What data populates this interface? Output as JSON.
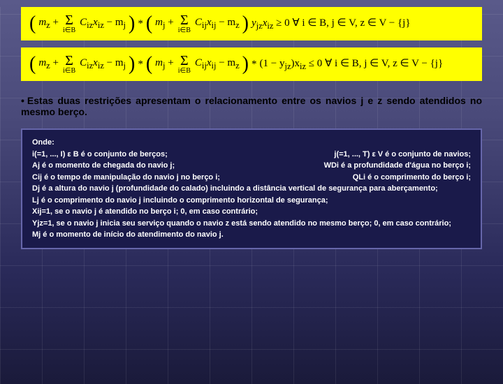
{
  "background": {
    "gradient_start": "#5a5a8a",
    "gradient_end": "#1a1a3a",
    "grid_color": "rgba(255,255,255,0.08)"
  },
  "formulas": {
    "box_bg": "#ffff00",
    "font_family": "Times New Roman",
    "formula1": {
      "part1_pre": "m",
      "part1_sub1": "z",
      "plus1": " + ",
      "sum1_top": "",
      "sum1_bot": "i∈B",
      "term1": "C",
      "term1_sub": "iz",
      "term1b": "x",
      "term1b_sub": "iz",
      "minus1": " − m",
      "minus1_sub": "j",
      "times1": " * ",
      "part2_pre": "m",
      "part2_sub1": "j",
      "plus2": " + ",
      "sum2_top": "",
      "sum2_bot": "i∈B",
      "term2": "C",
      "term2_sub": "ij",
      "term2b": "x",
      "term2b_sub": "ij",
      "minus2": " − m",
      "minus2_sub": "z",
      "tail": "y",
      "tail_sub1": "jz",
      "tail2": "x",
      "tail_sub2": "iz",
      "ineq": " ≥ 0  ∀ i ∈ B,  j ∈ V,  z ∈ V − {j}"
    },
    "formula2": {
      "part1_pre": "m",
      "part1_sub1": "z",
      "plus1": " + ",
      "sum1_bot": "i∈B",
      "term1": "C",
      "term1_sub": "iz",
      "term1b": "x",
      "term1b_sub": "iz",
      "minus1": " − m",
      "minus1_sub": "j",
      "times1": " * ",
      "part2_pre": "m",
      "part2_sub1": "j",
      "plus2": " + ",
      "sum2_bot": "i∈B",
      "term2": "C",
      "term2_sub": "ij",
      "term2b": "x",
      "term2b_sub": "ij",
      "minus2": " − m",
      "minus2_sub": "z",
      "times2": " * ",
      "part3": "(1 − y",
      "part3_sub": "jz",
      "part3b": ")x",
      "part3b_sub": "iz",
      "ineq": " ≤ 0  ∀ i ∈ B,  j ∈ V,  z ∈ V − {j}"
    }
  },
  "bullet": {
    "marker": "•",
    "text": "Estas duas restrições apresentam o relacionamento entre os navios j e z sendo atendidos no mesmo berço.",
    "font_size": 14,
    "color": "#000000"
  },
  "legend": {
    "box_bg": "#1a1a4a",
    "box_border": "#6666aa",
    "text_color": "#ffffff",
    "font_size": 11,
    "title": "Onde:",
    "rows": [
      {
        "left": "i(=1, ..., I) ε B é o conjunto de berços;",
        "right": "j(=1, ..., T) ε V é o conjunto de navios;"
      },
      {
        "left": "Aj é o momento de chegada do navio j;",
        "right": "WDi é a profundidade d'água no berço i;"
      },
      {
        "left": "Cij é o tempo de manipulação do navio j no berço i;",
        "right": "QLi é o comprimento do berço i;"
      }
    ],
    "full_lines": [
      "Dj é a altura do navio j (profundidade do calado) incluindo a distância vertical de segurança para aberçamento;",
      "Lj é o comprimento do navio j incluindo o comprimento horizontal de segurança;",
      "Xij=1, se o navio j é atendido no berço i; 0, em caso contrário;",
      "Yjz=1, se o navio j inicia seu serviço quando o navio z está sendo atendido no mesmo berço; 0, em caso contrário;",
      "Mj é o momento de início do atendimento do navio j."
    ]
  }
}
